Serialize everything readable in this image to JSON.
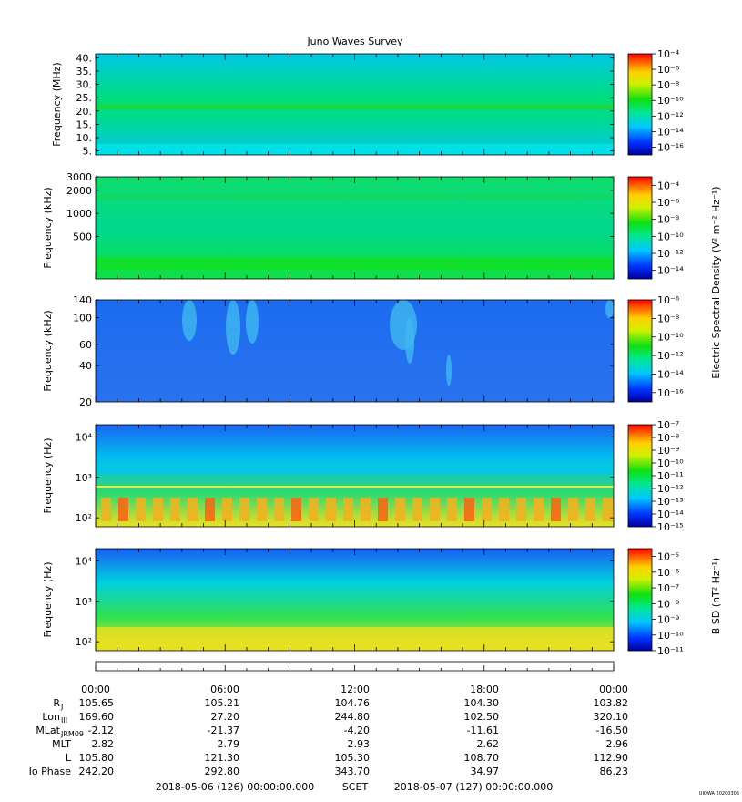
{
  "figure": {
    "title": "Juno Waves Survey",
    "scet_label": "SCET",
    "start_time": "2018-05-06 (126) 00:00:00.000",
    "end_time": "2018-05-07 (127) 00:00:00.000",
    "credit": "UIOWA 20200306"
  },
  "colorbar_labels": {
    "electric": "Electric Spectral Density (V² m⁻² Hz⁻¹)",
    "magnetic": "B SD (nT² Hz⁻¹)"
  },
  "ephemeris": {
    "time_ticks": [
      "00:00",
      "06:00",
      "12:00",
      "18:00",
      "00:00"
    ],
    "rows": [
      {
        "label": "R",
        "sub": "J",
        "values": [
          "105.65",
          "105.21",
          "104.76",
          "104.30",
          "103.82"
        ]
      },
      {
        "label": "Lon",
        "sub": "III",
        "values": [
          "169.60",
          "27.20",
          "244.80",
          "102.50",
          "320.10"
        ]
      },
      {
        "label": "MLat",
        "sub": "JRM09",
        "values": [
          "-2.12",
          "-21.37",
          "-4.20",
          "-11.61",
          "-16.50"
        ]
      },
      {
        "label": "MLT",
        "sub": "",
        "values": [
          "2.82",
          "2.79",
          "2.93",
          "2.62",
          "2.96"
        ]
      },
      {
        "label": "L",
        "sub": "",
        "values": [
          "105.80",
          "121.30",
          "105.30",
          "108.70",
          "112.90"
        ]
      },
      {
        "label": "Io Phase",
        "sub": "",
        "values": [
          "242.20",
          "292.80",
          "343.70",
          "34.97",
          "86.23"
        ]
      }
    ]
  },
  "chart_data": [
    {
      "type": "heatmap",
      "ylabel": "Frequency (MHz)",
      "y_ticks": [
        "40.",
        "35.",
        "30.",
        "25.",
        "20.",
        "15.",
        "10.",
        "5."
      ],
      "y_tick_values": [
        40,
        35,
        30,
        25,
        20,
        15,
        10,
        5
      ],
      "ylim": [
        3.5,
        41.5
      ],
      "yscale": "linear",
      "color_ticks": [
        -4,
        -6,
        -8,
        -10,
        -12,
        -14,
        -16
      ],
      "color_range": [
        -17,
        -4
      ],
      "colors": [
        "#00c8e6",
        "#00e070",
        "#00c8e6"
      ]
    },
    {
      "type": "heatmap",
      "ylabel": "Frequency (kHz)",
      "y_ticks": [
        "3000",
        "2000",
        "1000",
        "500"
      ],
      "y_tick_values": [
        3000,
        2000,
        1000,
        500
      ],
      "ylim": [
        140,
        3000
      ],
      "yscale": "log",
      "color_ticks": [
        -4,
        -6,
        -8,
        -10,
        -12,
        -14
      ],
      "color_range": [
        -15,
        -3
      ],
      "colors": [
        "#10dc6a",
        "#00d890",
        "#10e040"
      ]
    },
    {
      "type": "heatmap",
      "ylabel": "Frequency (kHz)",
      "y_ticks": [
        "140",
        "100",
        "60",
        "40",
        "20"
      ],
      "y_tick_values": [
        140,
        100,
        60,
        40,
        20
      ],
      "ylim": [
        20,
        140
      ],
      "yscale": "log",
      "color_ticks": [
        -6,
        -8,
        -10,
        -12,
        -14,
        -16
      ],
      "color_range": [
        -17,
        -6
      ],
      "colors": [
        "#1c6cf0",
        "#2a72ee"
      ]
    },
    {
      "type": "heatmap",
      "ylabel": "Frequency (Hz)",
      "y_ticks": [
        "10⁴",
        "10³",
        "10²"
      ],
      "y_tick_values": [
        10000,
        1000,
        100
      ],
      "ylim": [
        60,
        20000
      ],
      "yscale": "log",
      "color_ticks": [
        -7,
        -8,
        -9,
        -10,
        -11,
        -12,
        -13,
        -14,
        -15
      ],
      "color_range": [
        -15,
        -7
      ],
      "colors": [
        "#1a64f0",
        "#00c0f0",
        "#30d870",
        "#f0e020"
      ]
    },
    {
      "type": "heatmap",
      "ylabel": "Frequency (Hz)",
      "y_ticks": [
        "10⁴",
        "10³",
        "10²"
      ],
      "y_tick_values": [
        10000,
        1000,
        100
      ],
      "ylim": [
        60,
        20000
      ],
      "yscale": "log",
      "color_ticks": [
        -5,
        -6,
        -7,
        -8,
        -9,
        -10,
        -11
      ],
      "color_range": [
        -11,
        -4.5
      ],
      "colors": [
        "#1a5ef2",
        "#00d0e0",
        "#30e050",
        "#f0e020"
      ]
    }
  ]
}
